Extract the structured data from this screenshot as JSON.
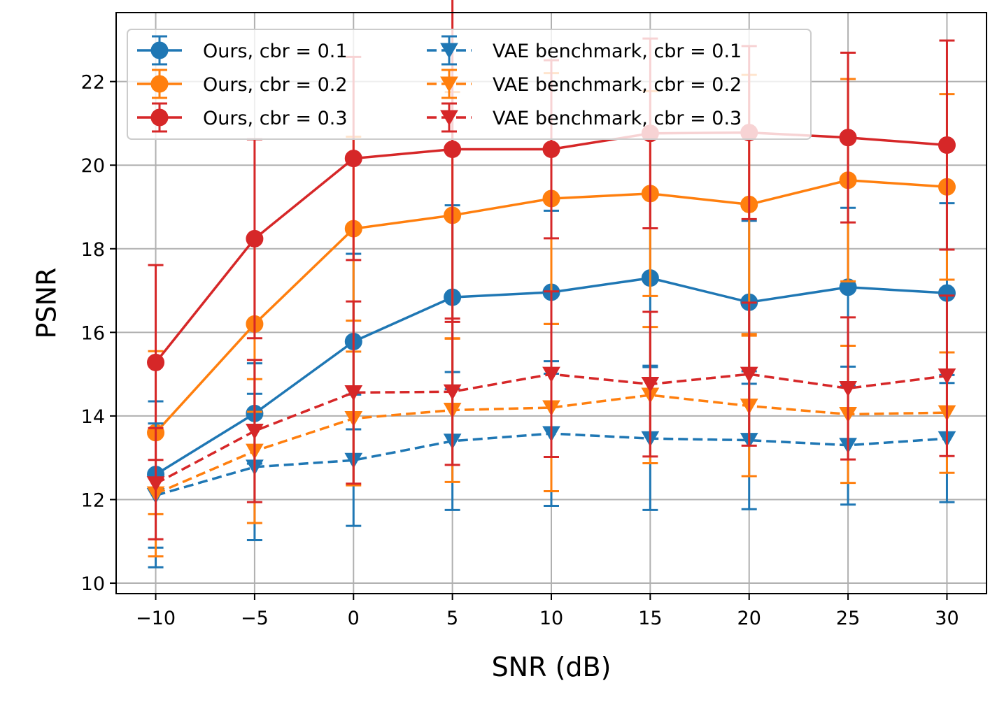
{
  "chart_data": {
    "type": "line",
    "title": "",
    "xlabel": "SNR (dB)",
    "ylabel": "PSNR",
    "xlim": [
      -12,
      32
    ],
    "ylim": [
      9.75,
      23.65
    ],
    "grid": true,
    "legend_position": "upper-left, two columns",
    "x": [
      -10,
      -5,
      0,
      5,
      10,
      15,
      20,
      25,
      30
    ],
    "xticks": [
      -10,
      -5,
      0,
      5,
      10,
      15,
      20,
      25,
      30
    ],
    "xtick_labels": [
      "−10",
      "−5",
      "0",
      "5",
      "10",
      "15",
      "20",
      "25",
      "30"
    ],
    "yticks": [
      10,
      12,
      14,
      16,
      18,
      20,
      22
    ],
    "ytick_labels": [
      "10",
      "12",
      "14",
      "16",
      "18",
      "20",
      "22"
    ],
    "series": [
      {
        "name": "Ours, cbr = 0.1",
        "color": "#1f77b4",
        "marker": "circle",
        "linestyle": "solid",
        "values": [
          12.6,
          14.06,
          15.78,
          16.84,
          16.96,
          17.3,
          16.72,
          17.08,
          16.94
        ],
        "errors": [
          1.75,
          1.2,
          2.1,
          2.2,
          1.95,
          2.1,
          1.95,
          1.9,
          2.15
        ]
      },
      {
        "name": "Ours, cbr = 0.2",
        "color": "#ff7f0e",
        "marker": "circle",
        "linestyle": "solid",
        "values": [
          13.6,
          16.2,
          18.48,
          18.8,
          19.2,
          19.32,
          19.06,
          19.64,
          19.48
        ],
        "errors": [
          1.95,
          2.1,
          2.2,
          2.95,
          3.0,
          2.45,
          3.1,
          2.42,
          2.22
        ]
      },
      {
        "name": "Ours, cbr = 0.3",
        "color": "#d62728",
        "marker": "circle",
        "linestyle": "solid",
        "values": [
          15.28,
          18.24,
          20.16,
          20.38,
          20.38,
          20.76,
          20.78,
          20.66,
          20.48
        ],
        "errors": [
          2.33,
          2.38,
          2.43,
          4.13,
          2.13,
          2.27,
          2.07,
          2.03,
          2.5
        ]
      },
      {
        "name": "VAE benchmark, cbr = 0.1",
        "color": "#1f77b4",
        "marker": "triangle-down",
        "linestyle": "dashed",
        "values": [
          12.1,
          12.78,
          12.94,
          13.4,
          13.58,
          13.46,
          13.42,
          13.3,
          13.46
        ],
        "errors": [
          1.72,
          1.75,
          1.57,
          1.65,
          1.73,
          1.71,
          1.65,
          1.42,
          1.52
        ]
      },
      {
        "name": "VAE benchmark, cbr = 0.2",
        "color": "#ff7f0e",
        "marker": "triangle-down",
        "linestyle": "dashed",
        "values": [
          12.14,
          13.16,
          13.94,
          14.14,
          14.2,
          14.5,
          14.24,
          14.04,
          14.08
        ],
        "errors": [
          1.5,
          1.72,
          1.6,
          1.72,
          2.0,
          1.63,
          1.68,
          1.64,
          1.44
        ]
      },
      {
        "name": "VAE benchmark, cbr = 0.3",
        "color": "#d62728",
        "marker": "triangle-down",
        "linestyle": "dashed",
        "values": [
          12.38,
          13.64,
          14.56,
          14.58,
          15.0,
          14.76,
          15.0,
          14.66,
          14.96
        ],
        "errors": [
          1.33,
          1.7,
          2.18,
          1.75,
          1.98,
          1.73,
          1.71,
          1.7,
          1.92
        ]
      }
    ]
  }
}
